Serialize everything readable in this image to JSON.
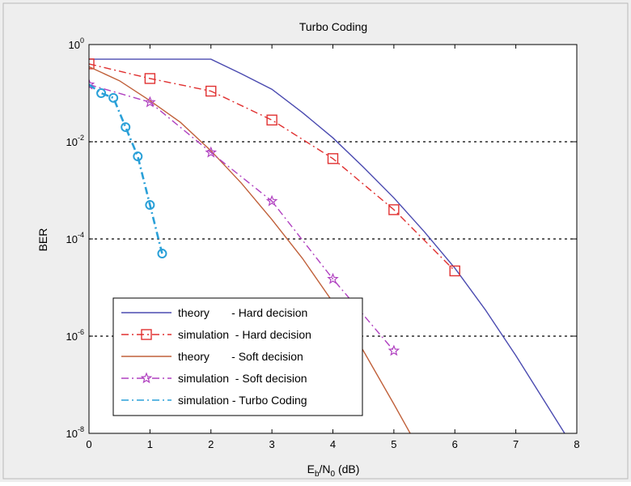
{
  "chart_data": {
    "type": "line",
    "title": "Turbo Coding",
    "xlabel": {
      "main": "E",
      "sub1": "b",
      "slash": "/N",
      "sub2": "0",
      "unit": " (dB)"
    },
    "ylabel": "BER",
    "xlim": [
      0,
      8
    ],
    "ylim_log10": [
      -8,
      0
    ],
    "y_scale": "log",
    "x_ticks": [
      0,
      1,
      2,
      3,
      4,
      5,
      6,
      7,
      8
    ],
    "y_ticks": [
      {
        "base": "10",
        "exp": "0",
        "value": 1
      },
      {
        "base": "10",
        "exp": "-2",
        "value": 0.01
      },
      {
        "base": "10",
        "exp": "-4",
        "value": 0.0001
      },
      {
        "base": "10",
        "exp": "-6",
        "value": 1e-06
      },
      {
        "base": "10",
        "exp": "-8",
        "value": 1e-08
      }
    ],
    "grid": {
      "y_major_dotted": true
    },
    "legend_position": "bottom-left",
    "series": [
      {
        "name": "theory       - Hard decision",
        "color": "#4a4ab0",
        "dash": "solid",
        "marker": "none",
        "x": [
          0,
          1,
          2,
          2.5,
          3,
          3.5,
          4,
          4.5,
          5,
          5.5,
          6,
          6.5,
          7,
          7.5,
          8
        ],
        "y": [
          0.5,
          0.5,
          0.5,
          0.25,
          0.12,
          0.04,
          0.012,
          0.003,
          0.0007,
          0.00014,
          2.5e-05,
          3.5e-06,
          4e-07,
          4e-08,
          4e-09
        ]
      },
      {
        "name": "simulation  - Hard decision",
        "color": "#e03030",
        "dash": "dashdot",
        "marker": "square",
        "x": [
          0,
          1,
          2,
          3,
          4,
          5,
          6
        ],
        "y": [
          0.4,
          0.2,
          0.11,
          0.028,
          0.0045,
          0.0004,
          2.2e-05
        ]
      },
      {
        "name": "theory       - Soft decision",
        "color": "#c0603a",
        "dash": "solid",
        "marker": "none",
        "x": [
          0,
          0.5,
          1,
          1.5,
          2,
          2.5,
          3,
          3.5,
          4,
          4.5,
          5,
          5.5,
          5.85
        ],
        "y": [
          0.35,
          0.18,
          0.07,
          0.025,
          0.0065,
          0.0014,
          0.00025,
          4e-05,
          5e-06,
          5e-07,
          4e-08,
          3e-09,
          1e-08
        ]
      },
      {
        "name": "simulation  - Soft decision",
        "color": "#b040c0",
        "dash": "dashdot",
        "marker": "star",
        "x": [
          0,
          1,
          2,
          3,
          4,
          5
        ],
        "y": [
          0.15,
          0.065,
          0.006,
          0.0006,
          1.5e-05,
          5e-07
        ]
      },
      {
        "name": "simulation - Turbo Coding",
        "color": "#2aa0d8",
        "dash": "dashdot",
        "marker": "circle",
        "x": [
          0,
          0.2,
          0.4,
          0.6,
          0.8,
          1.0,
          1.2
        ],
        "y": [
          0.15,
          0.1,
          0.08,
          0.02,
          0.005,
          0.0005,
          5e-05
        ]
      }
    ]
  }
}
